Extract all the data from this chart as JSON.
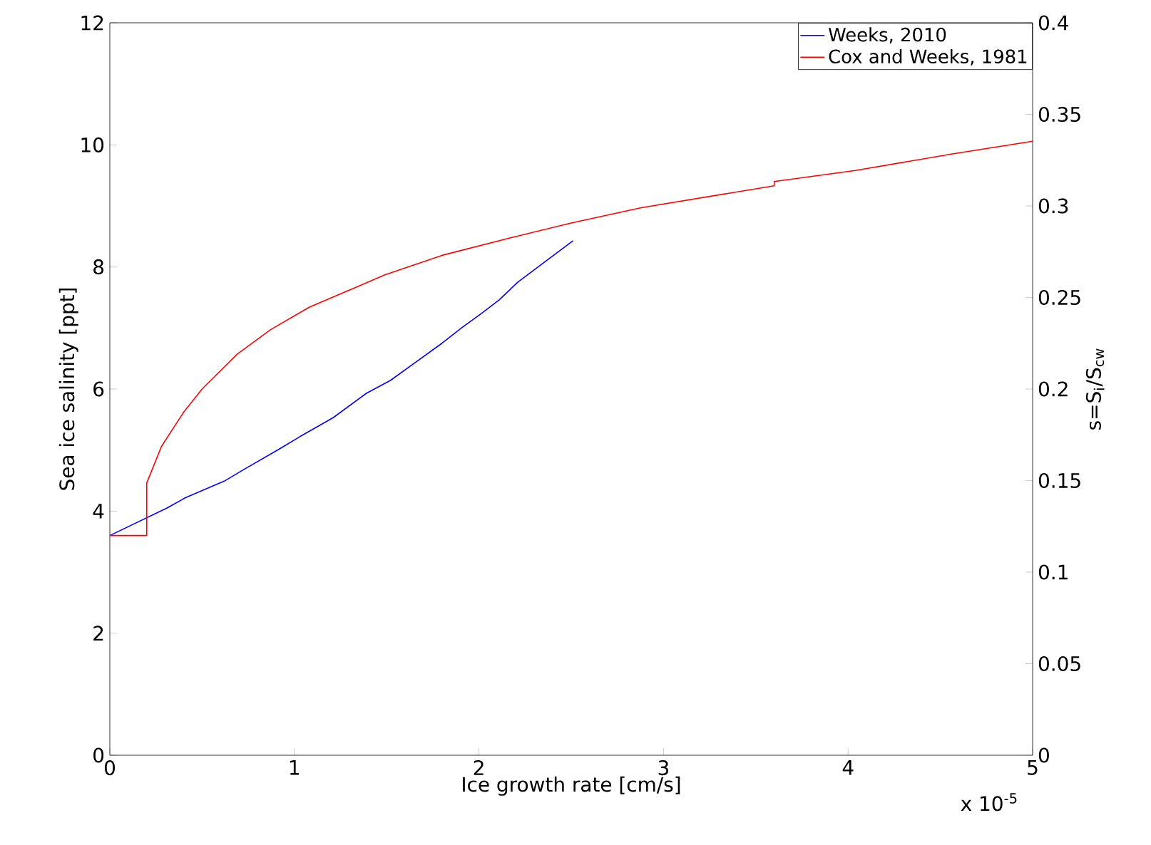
{
  "chart_data": {
    "type": "line",
    "xlabel": "Ice growth rate [cm/s]",
    "ylabel": "Sea ice salinity [ppt]",
    "y2label": "s=S$_{i}$/S$_{cw}$",
    "annotations": [
      "x 10$^{-5}$"
    ],
    "xlim": [
      0,
      5
    ],
    "xticks": [
      0,
      1,
      2,
      3,
      4,
      5
    ],
    "ylim": [
      0,
      12
    ],
    "yticks": [
      0,
      2,
      4,
      6,
      8,
      10,
      12
    ],
    "y2lim": [
      0,
      0.4
    ],
    "y2ticks": [
      0,
      0.05,
      0.1,
      0.15,
      0.2,
      0.25,
      0.3,
      0.35,
      0.4
    ],
    "legend": "top right",
    "grid": false,
    "marker": "none",
    "line_style": "solid",
    "series": [
      {
        "name": "Weeks, 2010",
        "color": "#0000ff",
        "x": [
          0,
          0.31,
          0.41,
          0.62,
          0.72,
          0.92,
          1.03,
          1.21,
          1.39,
          1.52,
          1.8,
          1.91,
          2.01,
          2.11,
          2.21,
          2.51
        ],
        "values": [
          3.6,
          4.05,
          4.22,
          4.49,
          4.67,
          5.02,
          5.22,
          5.53,
          5.93,
          6.14,
          6.75,
          7.01,
          7.23,
          7.46,
          7.75,
          8.43
        ]
      },
      {
        "name": "Cox and Weeks, 1981",
        "color": "#ff0000",
        "x": [
          0,
          0.2,
          0.2,
          0.28,
          0.4,
          0.5,
          0.69,
          0.87,
          1.08,
          1.29,
          1.49,
          1.8,
          2.16,
          2.5,
          2.88,
          3.6,
          3.6,
          4.04,
          4.56,
          5.0
        ],
        "values": [
          3.6,
          3.6,
          4.46,
          5.06,
          5.62,
          6.0,
          6.57,
          6.97,
          7.34,
          7.61,
          7.87,
          8.19,
          8.47,
          8.72,
          8.97,
          9.33,
          9.4,
          9.58,
          9.85,
          10.06
        ]
      }
    ]
  }
}
